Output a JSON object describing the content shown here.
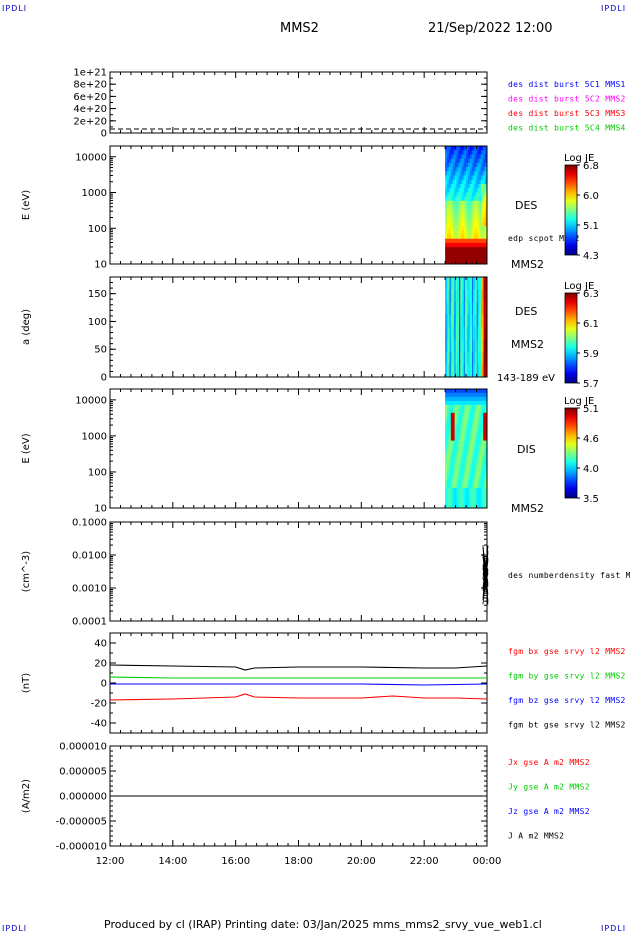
{
  "header": {
    "corner_tl": "IPDLI",
    "corner_tr": "IPDLI",
    "corner_bl": "IPDLI",
    "corner_br": "IPDLI",
    "spacecraft": "MMS2",
    "datetime": "21/Sep/2022 12:00"
  },
  "footer": {
    "text": "Produced by cl (IRAP)   Printing date: 03/Jan/2025   mms_mms2_srvy_vue_web1.cl"
  },
  "colors": {
    "mms1": "#0000ff",
    "mms2": "#ff00ff",
    "mms3": "#ff0000",
    "mms4": "#00cc00",
    "bx": "#ff0000",
    "by": "#00cc00",
    "bz": "#0000ff",
    "bt": "#000000"
  },
  "chart_data": [
    {
      "type": "line",
      "panel": "des dist burst",
      "ylabel": "",
      "yticks": [
        "0",
        "2e+20",
        "4e+20",
        "6e+20",
        "8e+20",
        "1e+21"
      ],
      "ylim": [
        0,
        1e+21
      ],
      "legend": [
        "des dist burst 5C1 MMS1",
        "des dist burst 5C2 MMS2",
        "des dist burst 5C3 MMS3",
        "des dist burst 5C4 MMS4"
      ],
      "series": [
        {
          "x": [
            "12:00",
            "00:00"
          ],
          "values": [
            0,
            0
          ],
          "style": "dashed"
        }
      ]
    },
    {
      "type": "heatmap",
      "panel": "DES energy spectrogram",
      "ylabel": "E (eV)",
      "yscale": "log",
      "ylim": [
        10,
        20000
      ],
      "yticks": [
        "10",
        "100",
        "1000",
        "10000"
      ],
      "labels": [
        "DES",
        "edp scpot MMS2",
        "MMS2"
      ],
      "colorbar": {
        "title": "Log JE",
        "ticks": [
          "6.8",
          "6.0",
          "5.1",
          "4.3"
        ],
        "range": [
          4.3,
          6.8
        ]
      },
      "data_interval": [
        "22:40",
        "00:00"
      ]
    },
    {
      "type": "heatmap",
      "panel": "DES pitch angle",
      "ylabel": "a (deg)",
      "ylim": [
        0,
        180
      ],
      "yticks": [
        "0",
        "50",
        "100",
        "150"
      ],
      "labels": [
        "DES",
        "MMS2",
        "143-189 eV"
      ],
      "colorbar": {
        "title": "Log JE",
        "ticks": [
          "6.3",
          "6.1",
          "5.9",
          "5.7"
        ],
        "range": [
          5.7,
          6.3
        ]
      },
      "data_interval": [
        "22:40",
        "00:00"
      ]
    },
    {
      "type": "heatmap",
      "panel": "DIS energy spectrogram",
      "ylabel": "E (eV)",
      "yscale": "log",
      "ylim": [
        10,
        20000
      ],
      "yticks": [
        "10",
        "100",
        "1000",
        "10000"
      ],
      "labels": [
        "DIS",
        "MMS2"
      ],
      "colorbar": {
        "title": "Log JE",
        "ticks": [
          "5.1",
          "4.6",
          "4.0",
          "3.5"
        ],
        "range": [
          3.5,
          5.1
        ]
      },
      "data_interval": [
        "22:40",
        "00:00"
      ]
    },
    {
      "type": "line",
      "panel": "density",
      "ylabel": "(cm^-3)",
      "yscale": "log",
      "ylim": [
        0.0001,
        0.1
      ],
      "yticks": [
        "0.0001",
        "0.0010",
        "0.0100",
        "0.1000"
      ],
      "legend": [
        "des numberdensity fast M"
      ],
      "data_interval": [
        "23:55",
        "00:00"
      ]
    },
    {
      "type": "line",
      "panel": "magnetic field",
      "ylabel": "(nT)",
      "ylim": [
        -50,
        50
      ],
      "yticks": [
        "-40",
        "-20",
        "0",
        "20",
        "40"
      ],
      "legend": [
        "fgm bx gse srvy l2 MMS2",
        "fgm by gse srvy l2 MMS2",
        "fgm bz gse srvy l2 MMS2",
        "fgm bt gse srvy l2 MMS2"
      ],
      "series": [
        {
          "key": "bt",
          "x": [
            12,
            14,
            16,
            16.3,
            16.6,
            18,
            20,
            22,
            23,
            23.5,
            24
          ],
          "values": [
            18,
            17,
            16,
            13,
            15,
            16,
            16,
            15,
            15,
            16,
            17
          ]
        },
        {
          "key": "by",
          "x": [
            12,
            14,
            16,
            18,
            20,
            22,
            24
          ],
          "values": [
            6,
            5,
            5,
            5,
            5,
            5,
            5
          ]
        },
        {
          "key": "bz",
          "x": [
            12,
            14,
            16,
            18,
            20,
            22,
            24
          ],
          "values": [
            -1,
            -1,
            -1,
            -1,
            -1,
            -2,
            -1
          ]
        },
        {
          "key": "bx",
          "x": [
            12,
            14,
            16,
            16.3,
            16.6,
            18,
            20,
            21,
            22,
            23,
            24
          ],
          "values": [
            -17,
            -16,
            -14,
            -11,
            -14,
            -15,
            -15,
            -13,
            -15,
            -15,
            -16
          ]
        }
      ]
    },
    {
      "type": "line",
      "panel": "current density",
      "ylabel": "(A/m2)",
      "ylim": [
        -1e-05,
        1e-05
      ],
      "yticks": [
        "-0.000010",
        "-0.000005",
        "0.000000",
        "0.000005",
        "0.000010"
      ],
      "legend": [
        "Jx gse A m2 MMS2",
        "Jy gse A m2 MMS2",
        "Jz gse A m2 MMS2",
        "J A m2 MMS2"
      ],
      "series": [
        {
          "x": [
            12,
            24
          ],
          "values": [
            0,
            0
          ]
        }
      ]
    }
  ],
  "xaxis": {
    "ticks": [
      "12:00",
      "14:00",
      "16:00",
      "18:00",
      "20:00",
      "22:00",
      "00:00"
    ]
  }
}
